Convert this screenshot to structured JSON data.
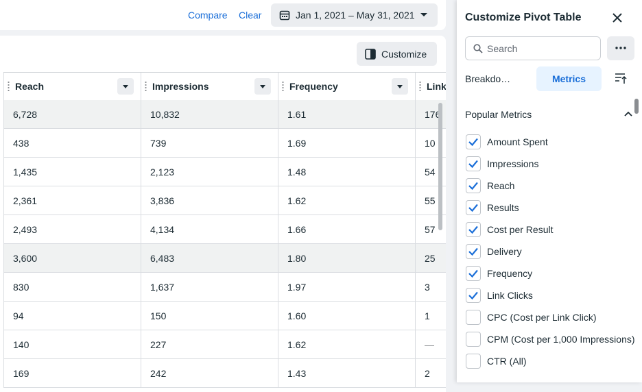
{
  "toolbar": {
    "compare": "Compare",
    "clear": "Clear",
    "date_range": "Jan 1, 2021 – May 31, 2021"
  },
  "customize_button": "Customize",
  "table": {
    "columns": [
      "Reach",
      "Impressions",
      "Frequency",
      "Link"
    ],
    "rows": [
      [
        "6,728",
        "10,832",
        "1.61",
        "176"
      ],
      [
        "438",
        "739",
        "1.69",
        "10"
      ],
      [
        "1,435",
        "2,123",
        "1.48",
        "54"
      ],
      [
        "2,361",
        "3,836",
        "1.62",
        "55"
      ],
      [
        "2,493",
        "4,134",
        "1.66",
        "57"
      ],
      [
        "3,600",
        "6,483",
        "1.80",
        "25"
      ],
      [
        "830",
        "1,637",
        "1.97",
        "3"
      ],
      [
        "94",
        "150",
        "1.60",
        "1"
      ],
      [
        "140",
        "227",
        "1.62",
        "—"
      ],
      [
        "169",
        "242",
        "1.43",
        "2"
      ]
    ]
  },
  "panel": {
    "title": "Customize Pivot Table",
    "search_placeholder": "Search",
    "tabs": [
      "Breakdo…",
      "Metrics"
    ],
    "section": "Popular Metrics",
    "metrics": [
      {
        "label": "Amount Spent",
        "checked": true
      },
      {
        "label": "Impressions",
        "checked": true
      },
      {
        "label": "Reach",
        "checked": true
      },
      {
        "label": "Results",
        "checked": true
      },
      {
        "label": "Cost per Result",
        "checked": true
      },
      {
        "label": "Delivery",
        "checked": true
      },
      {
        "label": "Frequency",
        "checked": true
      },
      {
        "label": "Link Clicks",
        "checked": true
      },
      {
        "label": "CPC (Cost per Link Click)",
        "checked": false
      },
      {
        "label": "CPM (Cost per 1,000 Impressions)",
        "checked": false
      },
      {
        "label": "CTR (All)",
        "checked": false
      }
    ]
  }
}
